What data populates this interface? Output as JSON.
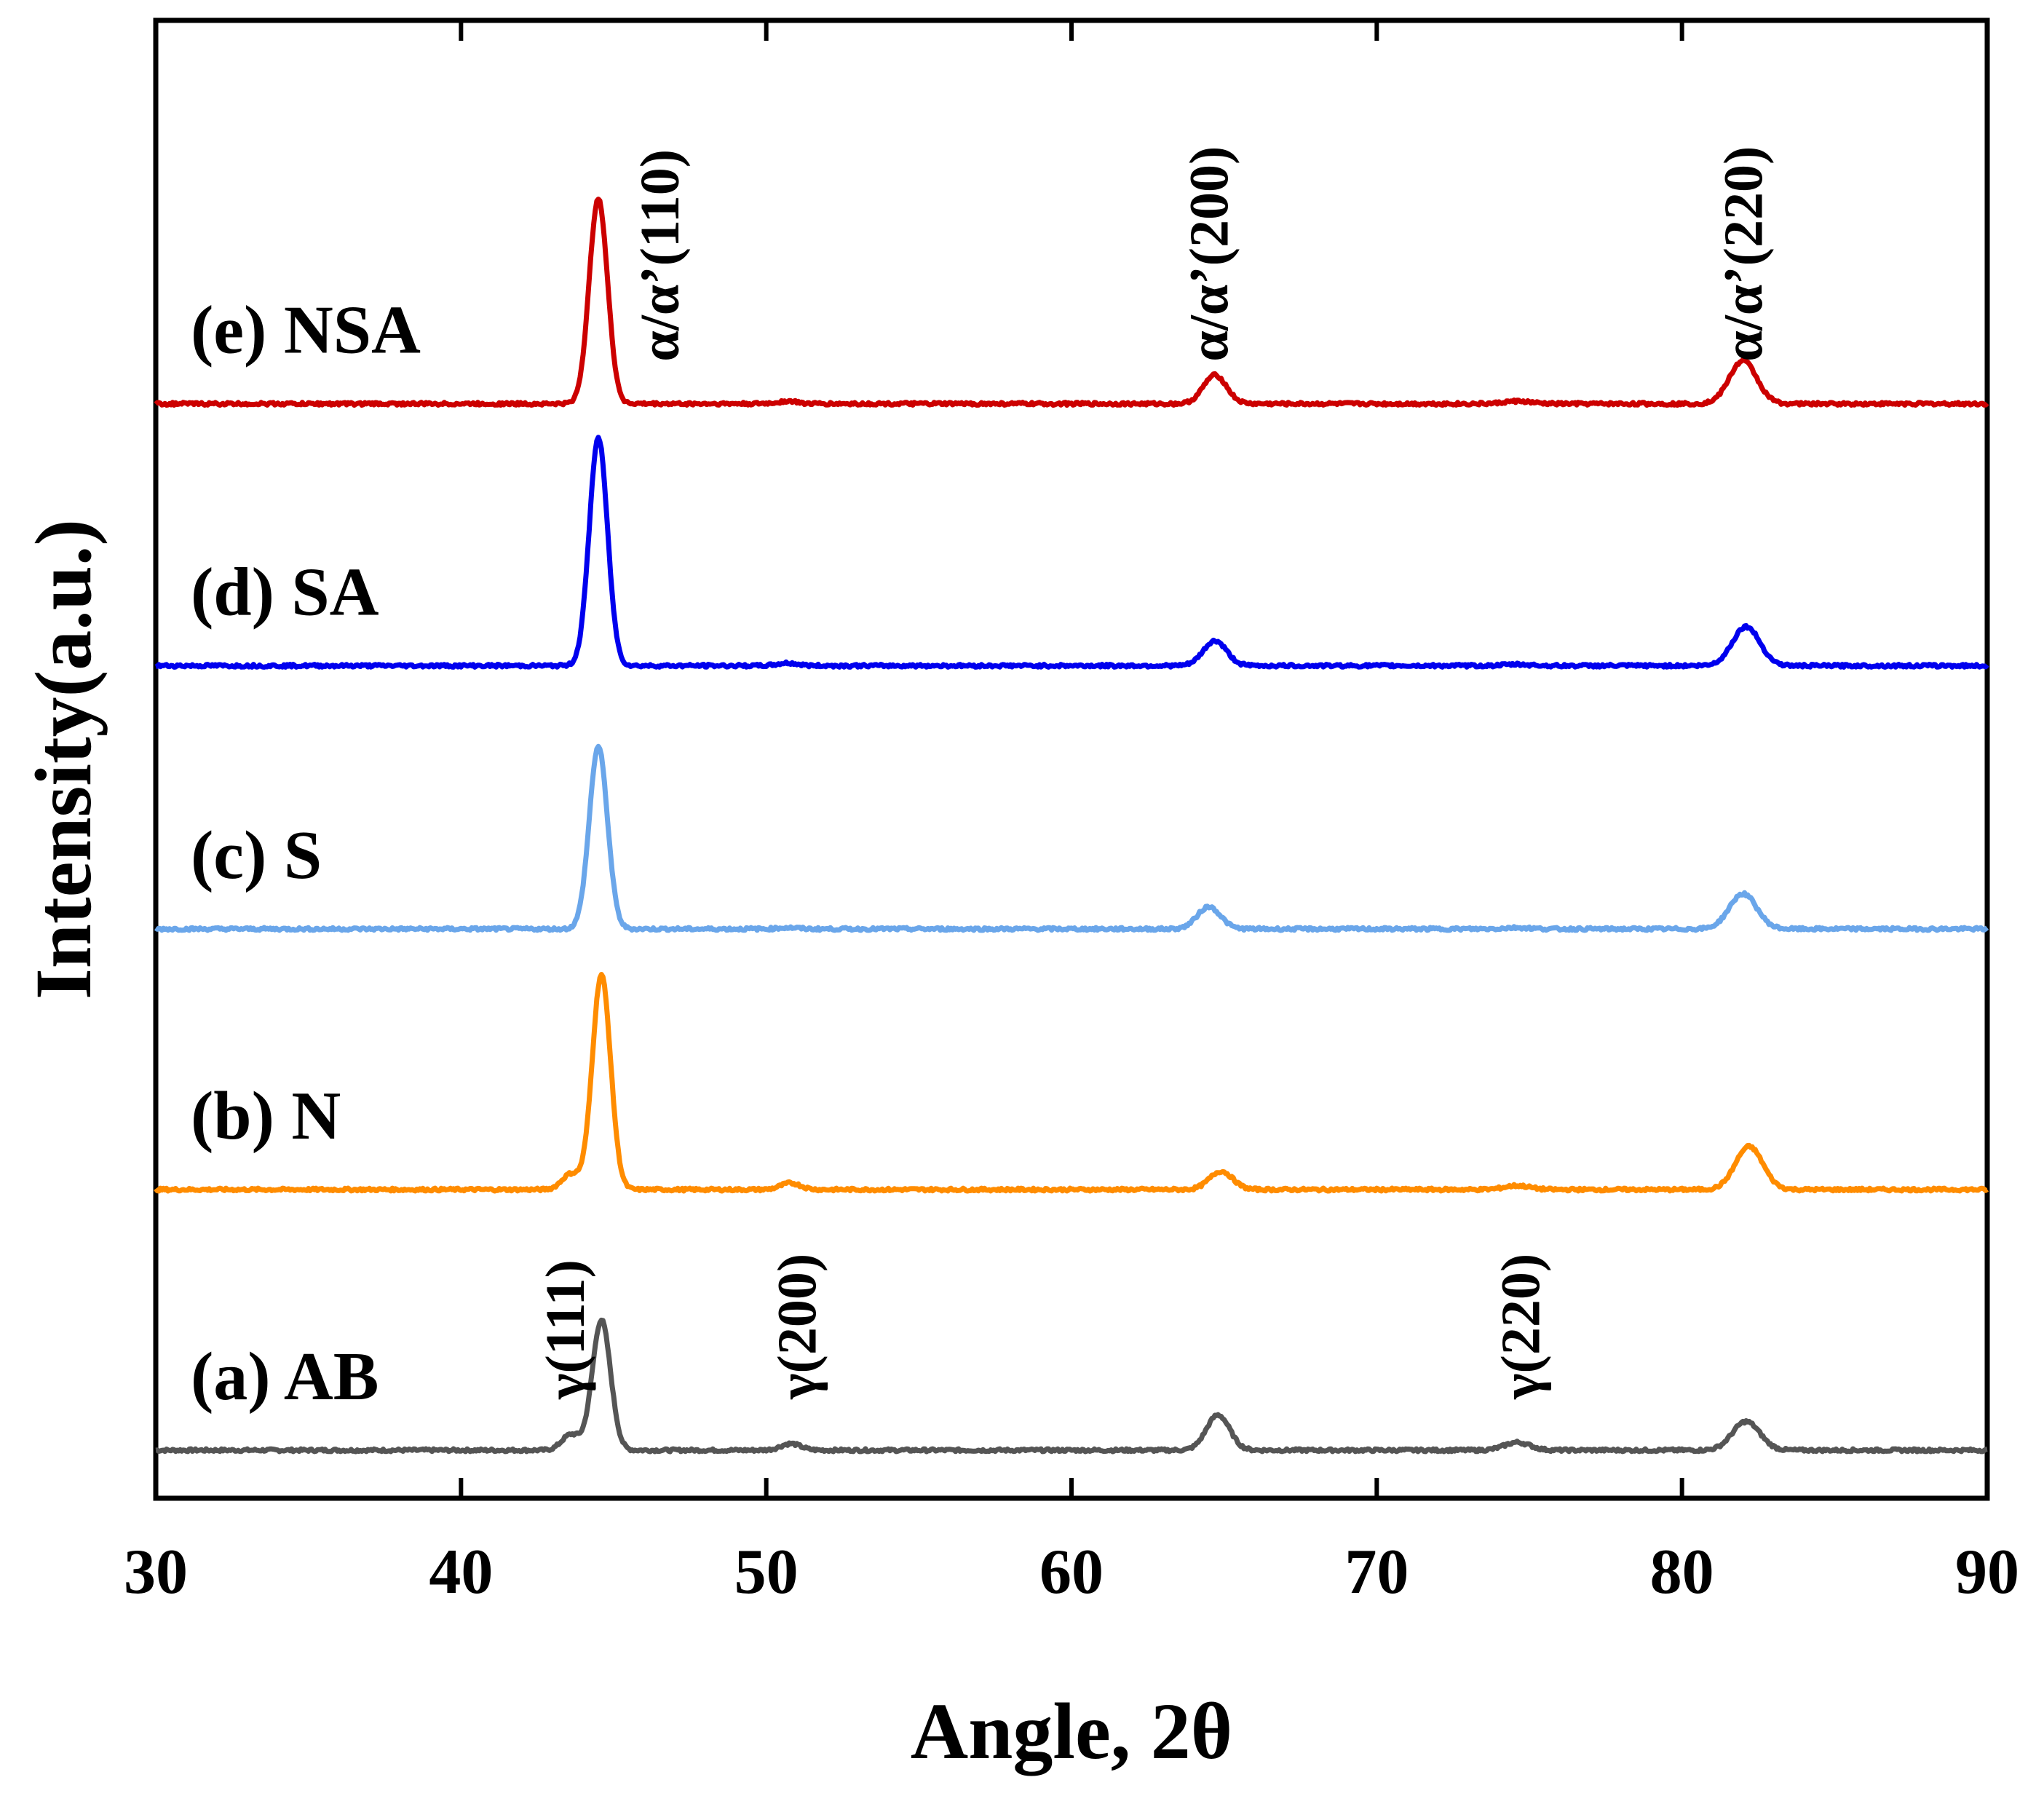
{
  "chart_data": {
    "type": "line",
    "title": "",
    "xlabel": "Angle, 2θ",
    "ylabel": "Intensity(a.u.)",
    "xlim": [
      30,
      90
    ],
    "xticks": [
      30,
      40,
      50,
      60,
      70,
      80,
      90
    ],
    "yticks": [],
    "grid": false,
    "units": "arbitrary, stacked curves (baseline offset per series)",
    "series": [
      {
        "name": "AB",
        "label": "(a) AB",
        "color": "#555555",
        "offset": 0,
        "peaks": [
          [
            43.6,
            12
          ],
          [
            44.6,
            100
          ],
          [
            50.8,
            5
          ],
          [
            64.8,
            27
          ],
          [
            74.6,
            6
          ],
          [
            82.1,
            22
          ]
        ]
      },
      {
        "name": "N",
        "label": "(b) N",
        "color": "#ff8c00",
        "offset": 200,
        "peaks": [
          [
            43.6,
            12
          ],
          [
            44.6,
            165
          ],
          [
            50.8,
            5
          ],
          [
            64.9,
            14
          ],
          [
            74.6,
            3
          ],
          [
            82.2,
            33
          ]
        ]
      },
      {
        "name": "S",
        "label": "(c) S",
        "color": "#6aa6ea",
        "offset": 400,
        "peaks": [
          [
            44.5,
            140
          ],
          [
            50.7,
            1
          ],
          [
            64.5,
            17
          ],
          [
            74.6,
            1
          ],
          [
            82.0,
            27
          ]
        ]
      },
      {
        "name": "SA",
        "label": "(d) SA",
        "color": "#0000ee",
        "offset": 602,
        "peaks": [
          [
            44.5,
            175
          ],
          [
            50.7,
            2
          ],
          [
            64.7,
            19
          ],
          [
            74.6,
            1
          ],
          [
            82.1,
            30
          ]
        ]
      },
      {
        "name": "NSA",
        "label": "(e) NSA",
        "color": "#cc0000",
        "offset": 803,
        "peaks": [
          [
            44.5,
            158
          ],
          [
            50.7,
            2
          ],
          [
            64.7,
            22
          ],
          [
            74.6,
            2
          ],
          [
            82.0,
            33
          ]
        ]
      }
    ],
    "annotations": [
      {
        "text": "γ(111)",
        "x": 43.4,
        "series": "AB"
      },
      {
        "text": "γ(200)",
        "x": 51.0,
        "series": "AB"
      },
      {
        "text": "γ(220)",
        "x": 74.7,
        "series": "AB"
      },
      {
        "text": "α/α’(110)",
        "x": 46.5,
        "series": "NSA"
      },
      {
        "text": "α/α’(200)",
        "x": 64.5,
        "series": "NSA"
      },
      {
        "text": "α/α’(220)",
        "x": 82.0,
        "series": "NSA"
      }
    ]
  }
}
